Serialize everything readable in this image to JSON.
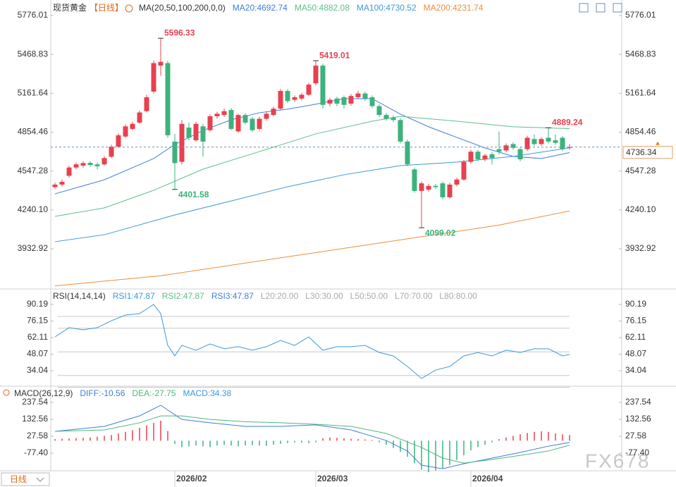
{
  "watermark": "FX678",
  "period_button": "日线",
  "chart_data": [
    {
      "type": "candlestick",
      "title": "现货黄金",
      "period": "【日线】",
      "indicator": "MA(20,50,100,200,0,0)",
      "up_color": "#e8404f",
      "down_color": "#3cb27c",
      "ylim": [
        3615.6,
        5898.5
      ],
      "yticks": [
        5776.01,
        5468.83,
        5161.64,
        4854.46,
        4547.28,
        {
          "value": 4240.1,
          "label": "4240.10"
        },
        3932.92
      ],
      "xticks": [
        {
          "value": 17,
          "label": "2026/02"
        },
        {
          "value": 37,
          "label": "2026/03"
        },
        {
          "value": 59,
          "label": "2026/04"
        }
      ],
      "candles": [
        [
          4420,
          4455,
          4405,
          4440
        ],
        [
          4440,
          4480,
          4425,
          4462
        ],
        [
          4510,
          4590,
          4495,
          4575
        ],
        [
          4575,
          4615,
          4560,
          4600
        ],
        [
          4590,
          4625,
          4575,
          4610
        ],
        [
          4612,
          4625,
          4580,
          4595
        ],
        [
          4600,
          4615,
          4560,
          4585
        ],
        [
          4600,
          4665,
          4590,
          4650
        ],
        [
          4660,
          4755,
          4650,
          4740
        ],
        [
          4740,
          4845,
          4730,
          4830
        ],
        [
          4820,
          4915,
          4810,
          4900
        ],
        [
          4880,
          4935,
          4870,
          4920
        ],
        [
          4930,
          5025,
          4920,
          5010
        ],
        [
          5020,
          5150,
          5010,
          5130
        ],
        [
          5175,
          5420,
          5160,
          5400
        ],
        [
          5380,
          5596.33,
          5300,
          5410
        ],
        [
          5400,
          5420,
          4810,
          4830
        ],
        [
          4780,
          4840,
          4401.58,
          4610
        ],
        [
          4620,
          4950,
          4600,
          4920
        ],
        [
          4890,
          4930,
          4790,
          4810
        ],
        [
          4790,
          4935,
          4780,
          4920
        ],
        [
          4900,
          4920,
          4660,
          4780
        ],
        [
          4870,
          4995,
          4860,
          4980
        ],
        [
          4980,
          5015,
          4960,
          5000
        ],
        [
          4990,
          5040,
          4975,
          5020
        ],
        [
          5030,
          5045,
          4870,
          4880
        ],
        [
          4860,
          5000,
          4850,
          4990
        ],
        [
          4990,
          5005,
          4915,
          4930
        ],
        [
          4960,
          4975,
          4855,
          4870
        ],
        [
          4880,
          4975,
          4870,
          4960
        ],
        [
          4960,
          5015,
          4945,
          5000
        ],
        [
          4990,
          5055,
          4980,
          5040
        ],
        [
          5040,
          5195,
          5030,
          5180
        ],
        [
          5180,
          5195,
          5085,
          5100
        ],
        [
          5110,
          5145,
          5095,
          5130
        ],
        [
          5120,
          5165,
          5105,
          5150
        ],
        [
          5150,
          5245,
          5140,
          5230
        ],
        [
          5240,
          5419.01,
          5225,
          5380
        ],
        [
          5380,
          5395,
          5040,
          5070
        ],
        [
          5080,
          5125,
          5060,
          5110
        ],
        [
          5120,
          5135,
          5060,
          5080
        ],
        [
          5130,
          5145,
          5040,
          5070
        ],
        [
          5080,
          5155,
          5065,
          5140
        ],
        [
          5130,
          5180,
          5115,
          5160
        ],
        [
          5160,
          5175,
          5100,
          5120
        ],
        [
          5130,
          5145,
          5045,
          5060
        ],
        [
          5060,
          5075,
          4975,
          4990
        ],
        [
          4990,
          5005,
          4945,
          4960
        ],
        [
          4970,
          4985,
          4935,
          4950
        ],
        [
          4950,
          4965,
          4765,
          4780
        ],
        [
          4780,
          4795,
          4585,
          4600
        ],
        [
          4560,
          4575,
          4375,
          4390
        ],
        [
          4390,
          4465,
          4099.02,
          4450
        ],
        [
          4400,
          4445,
          4385,
          4430
        ],
        [
          4430,
          4445,
          4405,
          4420
        ],
        [
          4450,
          4465,
          4325,
          4340
        ],
        [
          4340,
          4455,
          4330,
          4440
        ],
        [
          4440,
          4495,
          4425,
          4480
        ],
        [
          4480,
          4635,
          4470,
          4620
        ],
        [
          4620,
          4715,
          4605,
          4700
        ],
        [
          4700,
          4715,
          4625,
          4640
        ],
        [
          4640,
          4685,
          4625,
          4670
        ],
        [
          4680,
          4695,
          4600,
          4650
        ],
        [
          4720,
          4860,
          4680,
          4700
        ],
        [
          4710,
          4765,
          4695,
          4750
        ],
        [
          4760,
          4775,
          4715,
          4730
        ],
        [
          4720,
          4735,
          4625,
          4640
        ],
        [
          4720,
          4825,
          4705,
          4810
        ],
        [
          4800,
          4835,
          4745,
          4760
        ],
        [
          4760,
          4815,
          4745,
          4800
        ],
        [
          4810,
          4889.24,
          4765,
          4780
        ],
        [
          4790,
          4835,
          4755,
          4770
        ],
        [
          4810,
          4825,
          4705,
          4720
        ],
        [
          4730,
          4760,
          4715,
          4736.34
        ]
      ],
      "lines": [
        {
          "name": "MA20:4692.74",
          "color": "#3f7fd9",
          "x": [
            0,
            7,
            14,
            17,
            21,
            25,
            29,
            33,
            37,
            41,
            45,
            49,
            53,
            57,
            61,
            65,
            69,
            73
          ],
          "values": [
            4367,
            4478,
            4646,
            4757,
            4868,
            4952,
            5008,
            5036,
            5075,
            5119,
            5119,
            4997,
            4897,
            4813,
            4730,
            4663,
            4646,
            4692.74
          ]
        },
        {
          "name": "MA50:4882.08",
          "color": "#5cbf8a",
          "x": [
            0,
            7,
            14,
            21,
            29,
            37,
            45,
            49,
            57,
            65,
            73
          ],
          "values": [
            4189,
            4256,
            4395,
            4562,
            4701,
            4841,
            4941,
            4980,
            4941,
            4897,
            4882.08
          ]
        },
        {
          "name": "MA100:4730.52",
          "color": "#3a9ad9",
          "x": [
            0,
            7,
            17,
            25,
            33,
            41,
            49,
            57,
            65,
            73
          ],
          "values": [
            3989,
            4044,
            4200,
            4311,
            4423,
            4518,
            4590,
            4618,
            4663,
            4730.52
          ]
        },
        {
          "name": "MA200:4231.74",
          "color": "#f08c3c",
          "x": [
            0,
            15,
            27,
            39,
            51,
            63,
            73
          ],
          "values": [
            3640,
            3720,
            3820,
            3920,
            4020,
            4120,
            4231.74
          ]
        }
      ],
      "annotations": [
        {
          "x": 15,
          "value": 5596.33
        },
        {
          "x": 37,
          "value": 5419.01
        },
        {
          "x": 17,
          "value": 4401.58
        },
        {
          "x": 52,
          "value": 4099.02
        },
        {
          "x": 70,
          "value": 4889.24
        }
      ]
    },
    {
      "type": "line",
      "title": "RSI(14,14,14)",
      "legend": [
        {
          "name": "RSI1:47.87",
          "color": "#3a9ad9"
        },
        {
          "name": "RSI2:47.87",
          "color": "#5cbf8a"
        },
        {
          "name": "RSI3:47.87",
          "color": "#3f7fd9"
        }
      ],
      "levels": [
        {
          "value": 20,
          "label": "L20:20.00"
        },
        {
          "value": 30,
          "label": "L30:30.00"
        },
        {
          "value": 50,
          "label": "L50:50.00"
        },
        {
          "value": 70,
          "label": "L70:70.00"
        },
        {
          "value": 80,
          "label": "L80:80.00"
        }
      ],
      "color": "#3a9ad9",
      "ylim": [
        20.9,
        100.9
      ],
      "yticks": [
        90.19,
        76.15,
        62.11,
        48.07,
        34.04
      ],
      "x": [
        0,
        2,
        4,
        6,
        8,
        10,
        12,
        14,
        15,
        16,
        17,
        18,
        20,
        22,
        24,
        26,
        28,
        30,
        32,
        34,
        36,
        38,
        40,
        42,
        44,
        46,
        48,
        50,
        52,
        54,
        56,
        58,
        60,
        62,
        64,
        66,
        68,
        70,
        72,
        73
      ],
      "values": [
        62.7,
        70.5,
        68.7,
        70.5,
        76.4,
        81.2,
        82.4,
        90.2,
        82.4,
        55.5,
        46.6,
        55.5,
        51.4,
        56.7,
        52.6,
        54.4,
        51.4,
        54.4,
        59.7,
        55.5,
        62.7,
        51.4,
        54.4,
        54.4,
        55.5,
        49.5,
        46.6,
        37.6,
        27.5,
        34.6,
        37.6,
        46.6,
        49.5,
        46.6,
        51.4,
        49.5,
        52.6,
        52.6,
        46.6,
        47.87
      ]
    },
    {
      "type": "macd",
      "title": "MACD(26,12,9)",
      "ylim": [
        -186.8,
        320.7
      ],
      "yticks": [
        237.54,
        132.56,
        27.58,
        {
          "value": -77.4,
          "label": "-77.40"
        }
      ],
      "series": [
        {
          "name": "DIFF:-10.56",
          "color": "#3f7fd9",
          "x": [
            0,
            7,
            12,
            15,
            18,
            22,
            27,
            32,
            37,
            42,
            47,
            50,
            52,
            55,
            58,
            62,
            66,
            70,
            73
          ],
          "values": [
            58,
            89,
            154,
            220,
            132,
            111,
            89,
            89,
            98,
            67,
            1,
            -64,
            -152,
            -174,
            -143,
            -108,
            -73,
            -34,
            -10.56
          ]
        },
        {
          "name": "DEA:-27.75",
          "color": "#4cb87a",
          "x": [
            0,
            7,
            12,
            15,
            18,
            22,
            27,
            32,
            37,
            42,
            47,
            52,
            55,
            58,
            62,
            66,
            70,
            73
          ],
          "values": [
            58,
            67,
            111,
            154,
            154,
            132,
            118,
            111,
            102,
            89,
            45,
            -42,
            -108,
            -139,
            -117,
            -91,
            -64,
            -27.75
          ]
        }
      ],
      "histogram": {
        "name": "MACD:34.38",
        "up_color": "#e8404f",
        "down_color": "#3cb27c",
        "values": [
          10,
          12,
          14,
          16,
          18,
          20,
          25,
          30,
          35,
          45,
          55,
          65,
          80,
          95,
          110,
          124,
          60,
          -20,
          -40,
          -35,
          -30,
          -35,
          -40,
          -30,
          -25,
          -30,
          -35,
          -30,
          -28,
          -30,
          -32,
          -25,
          -20,
          -15,
          -10,
          -12,
          -15,
          -10,
          15,
          20,
          18,
          15,
          12,
          10,
          8,
          5,
          -10,
          -25,
          -45,
          -70,
          -100,
          -140,
          -180,
          -196,
          -185,
          -170,
          -150,
          -120,
          -90,
          -60,
          -40,
          -25,
          -10,
          10,
          20,
          30,
          40,
          48,
          55,
          58,
          55,
          45,
          40,
          34.38
        ]
      }
    }
  ]
}
